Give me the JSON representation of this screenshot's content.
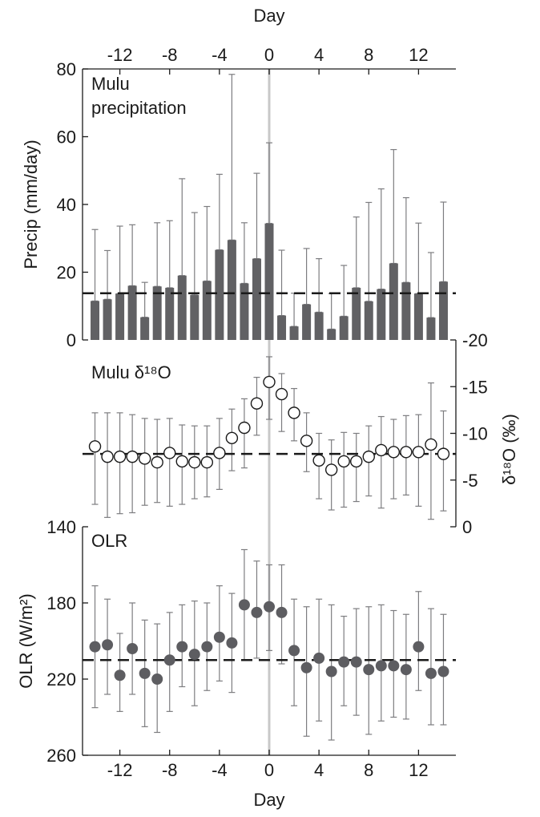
{
  "chart_data": [
    {
      "type": "bar",
      "panel": "precipitation",
      "annotation": [
        "Mulu",
        "precipitation"
      ],
      "top_xlabel": "Day",
      "top_xticks": [
        -12,
        -8,
        -4,
        0,
        4,
        8,
        12
      ],
      "ylabel": "Precip (mm/day)",
      "ylim": [
        0,
        80
      ],
      "yticks": [
        0,
        20,
        40,
        60,
        80
      ],
      "mean": 13.8,
      "x": [
        -14,
        -13,
        -12,
        -11,
        -10,
        -9,
        -8,
        -7,
        -6,
        -5,
        -4,
        -3,
        -2,
        -1,
        0,
        1,
        2,
        3,
        4,
        5,
        6,
        7,
        8,
        9,
        10,
        11,
        12,
        13,
        14
      ],
      "values": [
        11.5,
        12,
        13.7,
        16,
        6.7,
        15.8,
        15.4,
        19,
        13.3,
        17.4,
        26.6,
        29.5,
        16.7,
        24,
        34.4,
        7.2,
        4,
        10.5,
        8.2,
        3.2,
        7,
        15.4,
        11.4,
        15,
        22.6,
        17,
        13.7,
        6.6,
        17.2
      ],
      "error_upper": [
        32.6,
        26.4,
        33.6,
        34,
        17,
        34.6,
        35.2,
        47.6,
        37.6,
        39.4,
        48.9,
        78.4,
        34.6,
        49.2,
        58.2,
        26.5,
        13.8,
        27,
        24,
        13.7,
        22,
        36.3,
        40.6,
        44.6,
        56.2,
        42,
        34.5,
        25.8,
        40.7
      ]
    },
    {
      "type": "scatter",
      "panel": "d18O",
      "annotation": "Mulu δ¹⁸O",
      "ylabel": "δ¹⁸O (‰)",
      "ylim": [
        0,
        -20
      ],
      "yticks": [
        0,
        -5,
        -10,
        -15,
        -20
      ],
      "mean": -7.8,
      "x": [
        -14,
        -13,
        -12,
        -11,
        -10,
        -9,
        -8,
        -7,
        -6,
        -5,
        -4,
        -3,
        -2,
        -1,
        0,
        1,
        2,
        3,
        4,
        5,
        6,
        7,
        8,
        9,
        10,
        11,
        12,
        13,
        14
      ],
      "values": [
        -8.6,
        -7.5,
        -7.5,
        -7.5,
        -7.3,
        -6.9,
        -7.9,
        -7,
        -6.9,
        -6.9,
        -7.9,
        -9.5,
        -10.6,
        -13.2,
        -15.5,
        -14.2,
        -12.2,
        -9.2,
        -7.1,
        -6.1,
        -7,
        -7,
        -7.5,
        -8.2,
        -8,
        -8,
        -8,
        -8.8,
        -7.8
      ],
      "error_low": [
        -2.4,
        -1,
        -1.4,
        -1.5,
        -2.3,
        -2.6,
        -2.2,
        -2.4,
        -3,
        -3.2,
        -4,
        -6,
        -6.3,
        -9.8,
        -11.5,
        -10.2,
        -9.2,
        -5.9,
        -3,
        -1.8,
        -2.1,
        -2.7,
        -3.3,
        -2,
        -3,
        -3.4,
        -2.2,
        -0.8,
        -1.7
      ],
      "error_high": [
        -12.2,
        -12.2,
        -12.2,
        -12,
        -11.6,
        -11.5,
        -11.6,
        -10.9,
        -10.8,
        -10.8,
        -11.6,
        -12.6,
        -13.7,
        -16,
        -18.2,
        -16.4,
        -14.8,
        -12.2,
        -10,
        -9.3,
        -10.1,
        -10,
        -10.8,
        -11.8,
        -11.5,
        -11.9,
        -12,
        -15.4,
        -12.4
      ],
      "y2_tick_labels": [
        "0",
        "-5",
        "-10",
        "-15",
        "-20"
      ]
    },
    {
      "type": "scatter",
      "panel": "OLR",
      "annotation": "OLR",
      "ylabel": "OLR (W/m²)",
      "xlabel": "Day",
      "xticks": [
        -12,
        -8,
        -4,
        0,
        4,
        8,
        12
      ],
      "ylim": [
        260,
        140
      ],
      "yticks": [
        140,
        180,
        220,
        260
      ],
      "mean": 210,
      "x": [
        -14,
        -13,
        -12,
        -11,
        -10,
        -9,
        -8,
        -7,
        -6,
        -5,
        -4,
        -3,
        -2,
        -1,
        0,
        1,
        2,
        3,
        4,
        5,
        6,
        7,
        8,
        9,
        10,
        11,
        12,
        13,
        14
      ],
      "values": [
        203,
        202,
        218,
        204,
        217,
        220,
        210,
        203,
        207,
        203,
        198,
        201,
        181,
        185,
        182,
        185,
        205,
        214,
        209,
        216,
        211,
        211,
        215,
        213,
        213,
        215,
        203,
        217,
        216
      ],
      "error_low": [
        235,
        228,
        237,
        228,
        245,
        248,
        237,
        224,
        234,
        226,
        221,
        227,
        210,
        209,
        205,
        212,
        234,
        250,
        242,
        252,
        234,
        239,
        249,
        242,
        240,
        241,
        226,
        244,
        244
      ],
      "error_high": [
        171,
        178,
        196,
        180,
        189,
        191,
        185,
        181,
        179,
        180,
        171,
        175,
        152,
        158,
        160,
        160,
        178,
        182,
        178,
        181,
        187,
        183,
        182,
        181,
        184,
        186,
        174,
        183,
        186
      ]
    }
  ],
  "style": {
    "bar_color": "#616164",
    "marker_fill_dark": "#5d5d61",
    "marker_fill_open": "#ffffff",
    "error_color": "#7d7d80",
    "axis_color": "#1a1a1a",
    "zero_line_color": "#c8c8c8",
    "mean_line_color": "#1a1a1a"
  }
}
